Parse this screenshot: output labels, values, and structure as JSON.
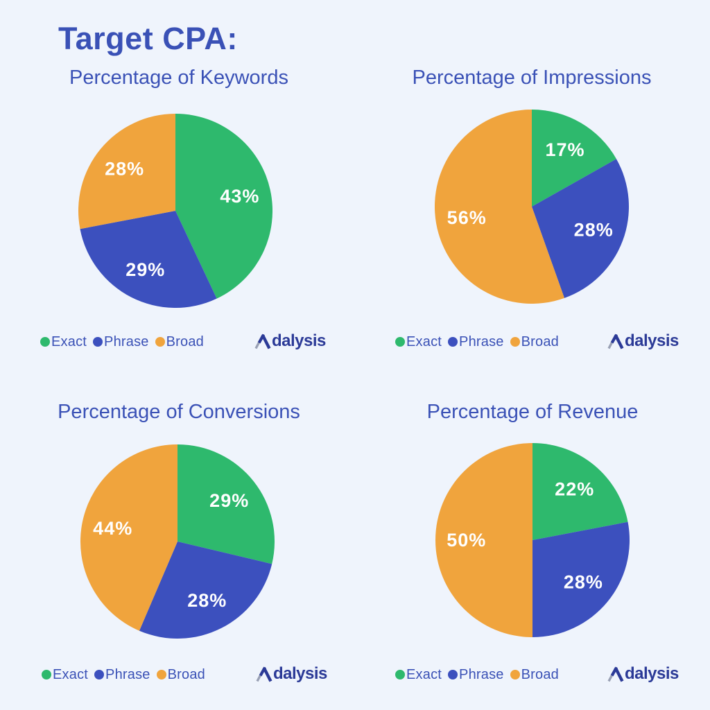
{
  "page": {
    "background": "#EFF4FC",
    "title": "Target CPA:"
  },
  "colors": {
    "accent_blue_text": "#3A51B6",
    "exact_green": "#2EB96D",
    "phrase_blue": "#3C50BE",
    "broad_orange": "#F0A43D",
    "pie_label_white": "#FFFFFF",
    "logo_navy": "#2B3A97",
    "logo_gray": "#99A0B4"
  },
  "brand": {
    "name": "Adalysis",
    "wordmark_suffix": "dalysis"
  },
  "legend": {
    "items": [
      {
        "label": "Exact",
        "color": "#2EB96D"
      },
      {
        "label": "Phrase",
        "color": "#3C50BE"
      },
      {
        "label": "Broad",
        "color": "#F0A43D"
      }
    ]
  },
  "chart_data": [
    {
      "type": "pie",
      "title": "Percentage of Keywords",
      "categories": [
        "Exact",
        "Phrase",
        "Broad"
      ],
      "values": [
        43,
        29,
        28
      ],
      "labels": [
        "43%",
        "29%",
        "28%"
      ],
      "colors": [
        "#2EB96D",
        "#3C50BE",
        "#F0A43D"
      ],
      "start_angle_deg": 0,
      "direction": "clockwise",
      "label_radius": 0.68,
      "legend_position": "bottom-left"
    },
    {
      "type": "pie",
      "title": "Percentage of Impressions",
      "categories": [
        "Exact",
        "Phrase",
        "Broad"
      ],
      "values": [
        17,
        28,
        56
      ],
      "labels": [
        "17%",
        "28%",
        "56%"
      ],
      "colors": [
        "#2EB96D",
        "#3C50BE",
        "#F0A43D"
      ],
      "start_angle_deg": 0,
      "direction": "clockwise",
      "label_radius": 0.68,
      "legend_position": "bottom-left"
    },
    {
      "type": "pie",
      "title": "Percentage of Conversions",
      "categories": [
        "Exact",
        "Phrase",
        "Broad"
      ],
      "values": [
        29,
        28,
        44
      ],
      "labels": [
        "29%",
        "28%",
        "44%"
      ],
      "colors": [
        "#2EB96D",
        "#3C50BE",
        "#F0A43D"
      ],
      "start_angle_deg": 0,
      "direction": "clockwise",
      "label_radius": 0.68,
      "legend_position": "bottom-left"
    },
    {
      "type": "pie",
      "title": "Percentage of Revenue",
      "categories": [
        "Exact",
        "Phrase",
        "Broad"
      ],
      "values": [
        22,
        28,
        50
      ],
      "labels": [
        "22%",
        "28%",
        "50%"
      ],
      "colors": [
        "#2EB96D",
        "#3C50BE",
        "#F0A43D"
      ],
      "start_angle_deg": 0,
      "direction": "clockwise",
      "label_radius": 0.68,
      "legend_position": "bottom-left"
    }
  ]
}
